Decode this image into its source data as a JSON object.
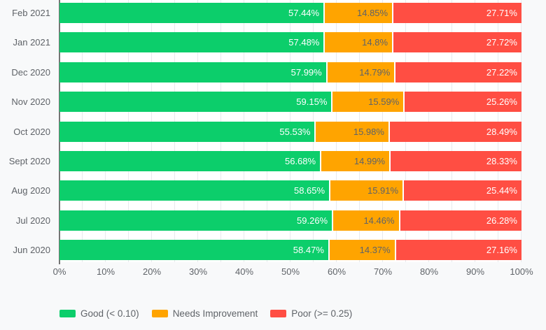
{
  "colors": {
    "good": "#0cce6b",
    "needs_improvement": "#ffa400",
    "poor": "#ff4e43",
    "axis_text": "#5f6368",
    "plot_background": "#ffffff",
    "page_background": "#f8f9fa",
    "gridline": "#e8eaed",
    "axis_line": "#757575"
  },
  "chart_data": {
    "type": "bar",
    "stacked": true,
    "orientation": "horizontal",
    "categories": [
      "Feb 2021",
      "Jan 2021",
      "Dec 2020",
      "Nov 2020",
      "Oct 2020",
      "Sept 2020",
      "Aug 2020",
      "Jul 2020",
      "Jun 2020"
    ],
    "series": [
      {
        "key": "good",
        "name": "Good (< 0.10)",
        "color": "#0cce6b",
        "label_color": "#ffffff",
        "values": [
          57.44,
          57.48,
          57.99,
          59.15,
          55.53,
          56.68,
          58.65,
          59.26,
          58.47
        ],
        "labels": [
          "57.44%",
          "57.48%",
          "57.99%",
          "59.15%",
          "55.53%",
          "56.68%",
          "58.65%",
          "59.26%",
          "58.47%"
        ]
      },
      {
        "key": "needs_improvement",
        "name": "Needs Improvement",
        "color": "#ffa400",
        "label_color": "#5f6368",
        "values": [
          14.85,
          14.8,
          14.79,
          15.59,
          15.98,
          14.99,
          15.91,
          14.46,
          14.37
        ],
        "labels": [
          "14.85%",
          "14.8%",
          "14.79%",
          "15.59%",
          "15.98%",
          "14.99%",
          "15.91%",
          "14.46%",
          "14.37%"
        ]
      },
      {
        "key": "poor",
        "name": "Poor (>= 0.25)",
        "color": "#ff4e43",
        "label_color": "#ffffff",
        "values": [
          27.71,
          27.72,
          27.22,
          25.26,
          28.49,
          28.33,
          25.44,
          26.28,
          27.16
        ],
        "labels": [
          "27.71%",
          "27.72%",
          "27.22%",
          "25.26%",
          "28.49%",
          "28.33%",
          "25.44%",
          "26.28%",
          "27.16%"
        ]
      }
    ],
    "x_axis": {
      "min": 0,
      "max": 100,
      "tick_step": 10,
      "minor_grid_step": 5,
      "ticks": [
        "0%",
        "10%",
        "20%",
        "30%",
        "40%",
        "50%",
        "60%",
        "70%",
        "80%",
        "90%",
        "100%"
      ]
    },
    "legend": {
      "position": "bottom",
      "items": [
        "Good (< 0.10)",
        "Needs Improvement",
        "Poor (>= 0.25)"
      ]
    },
    "grid": true
  }
}
